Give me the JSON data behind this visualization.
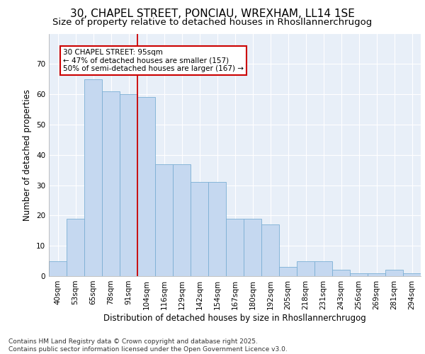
{
  "title": "30, CHAPEL STREET, PONCIAU, WREXHAM, LL14 1SE",
  "subtitle": "Size of property relative to detached houses in Rhosllannerchrugog",
  "xlabel": "Distribution of detached houses by size in Rhosllannerchrugog",
  "ylabel": "Number of detached properties",
  "categories": [
    "40sqm",
    "53sqm",
    "65sqm",
    "78sqm",
    "91sqm",
    "104sqm",
    "116sqm",
    "129sqm",
    "142sqm",
    "154sqm",
    "167sqm",
    "180sqm",
    "192sqm",
    "205sqm",
    "218sqm",
    "231sqm",
    "243sqm",
    "256sqm",
    "269sqm",
    "281sqm",
    "294sqm"
  ],
  "bar_values": [
    5,
    19,
    65,
    61,
    60,
    59,
    37,
    37,
    31,
    31,
    19,
    19,
    17,
    3,
    5,
    5,
    2,
    1,
    1,
    2,
    1
  ],
  "bar_color": "#c5d8f0",
  "bar_edge_color": "#7bafd4",
  "red_line_x": 4.5,
  "annotation_text": "30 CHAPEL STREET: 95sqm\n← 47% of detached houses are smaller (157)\n50% of semi-detached houses are larger (167) →",
  "annotation_box_color": "#ffffff",
  "annotation_border_color": "#cc0000",
  "ylim": [
    0,
    80
  ],
  "yticks": [
    0,
    10,
    20,
    30,
    40,
    50,
    60,
    70
  ],
  "footer_text": "Contains HM Land Registry data © Crown copyright and database right 2025.\nContains public sector information licensed under the Open Government Licence v3.0.",
  "background_color": "#e8eff8",
  "grid_color": "#ffffff",
  "title_fontsize": 11,
  "subtitle_fontsize": 9.5,
  "axis_label_fontsize": 8.5,
  "tick_fontsize": 7.5,
  "footer_fontsize": 6.5
}
